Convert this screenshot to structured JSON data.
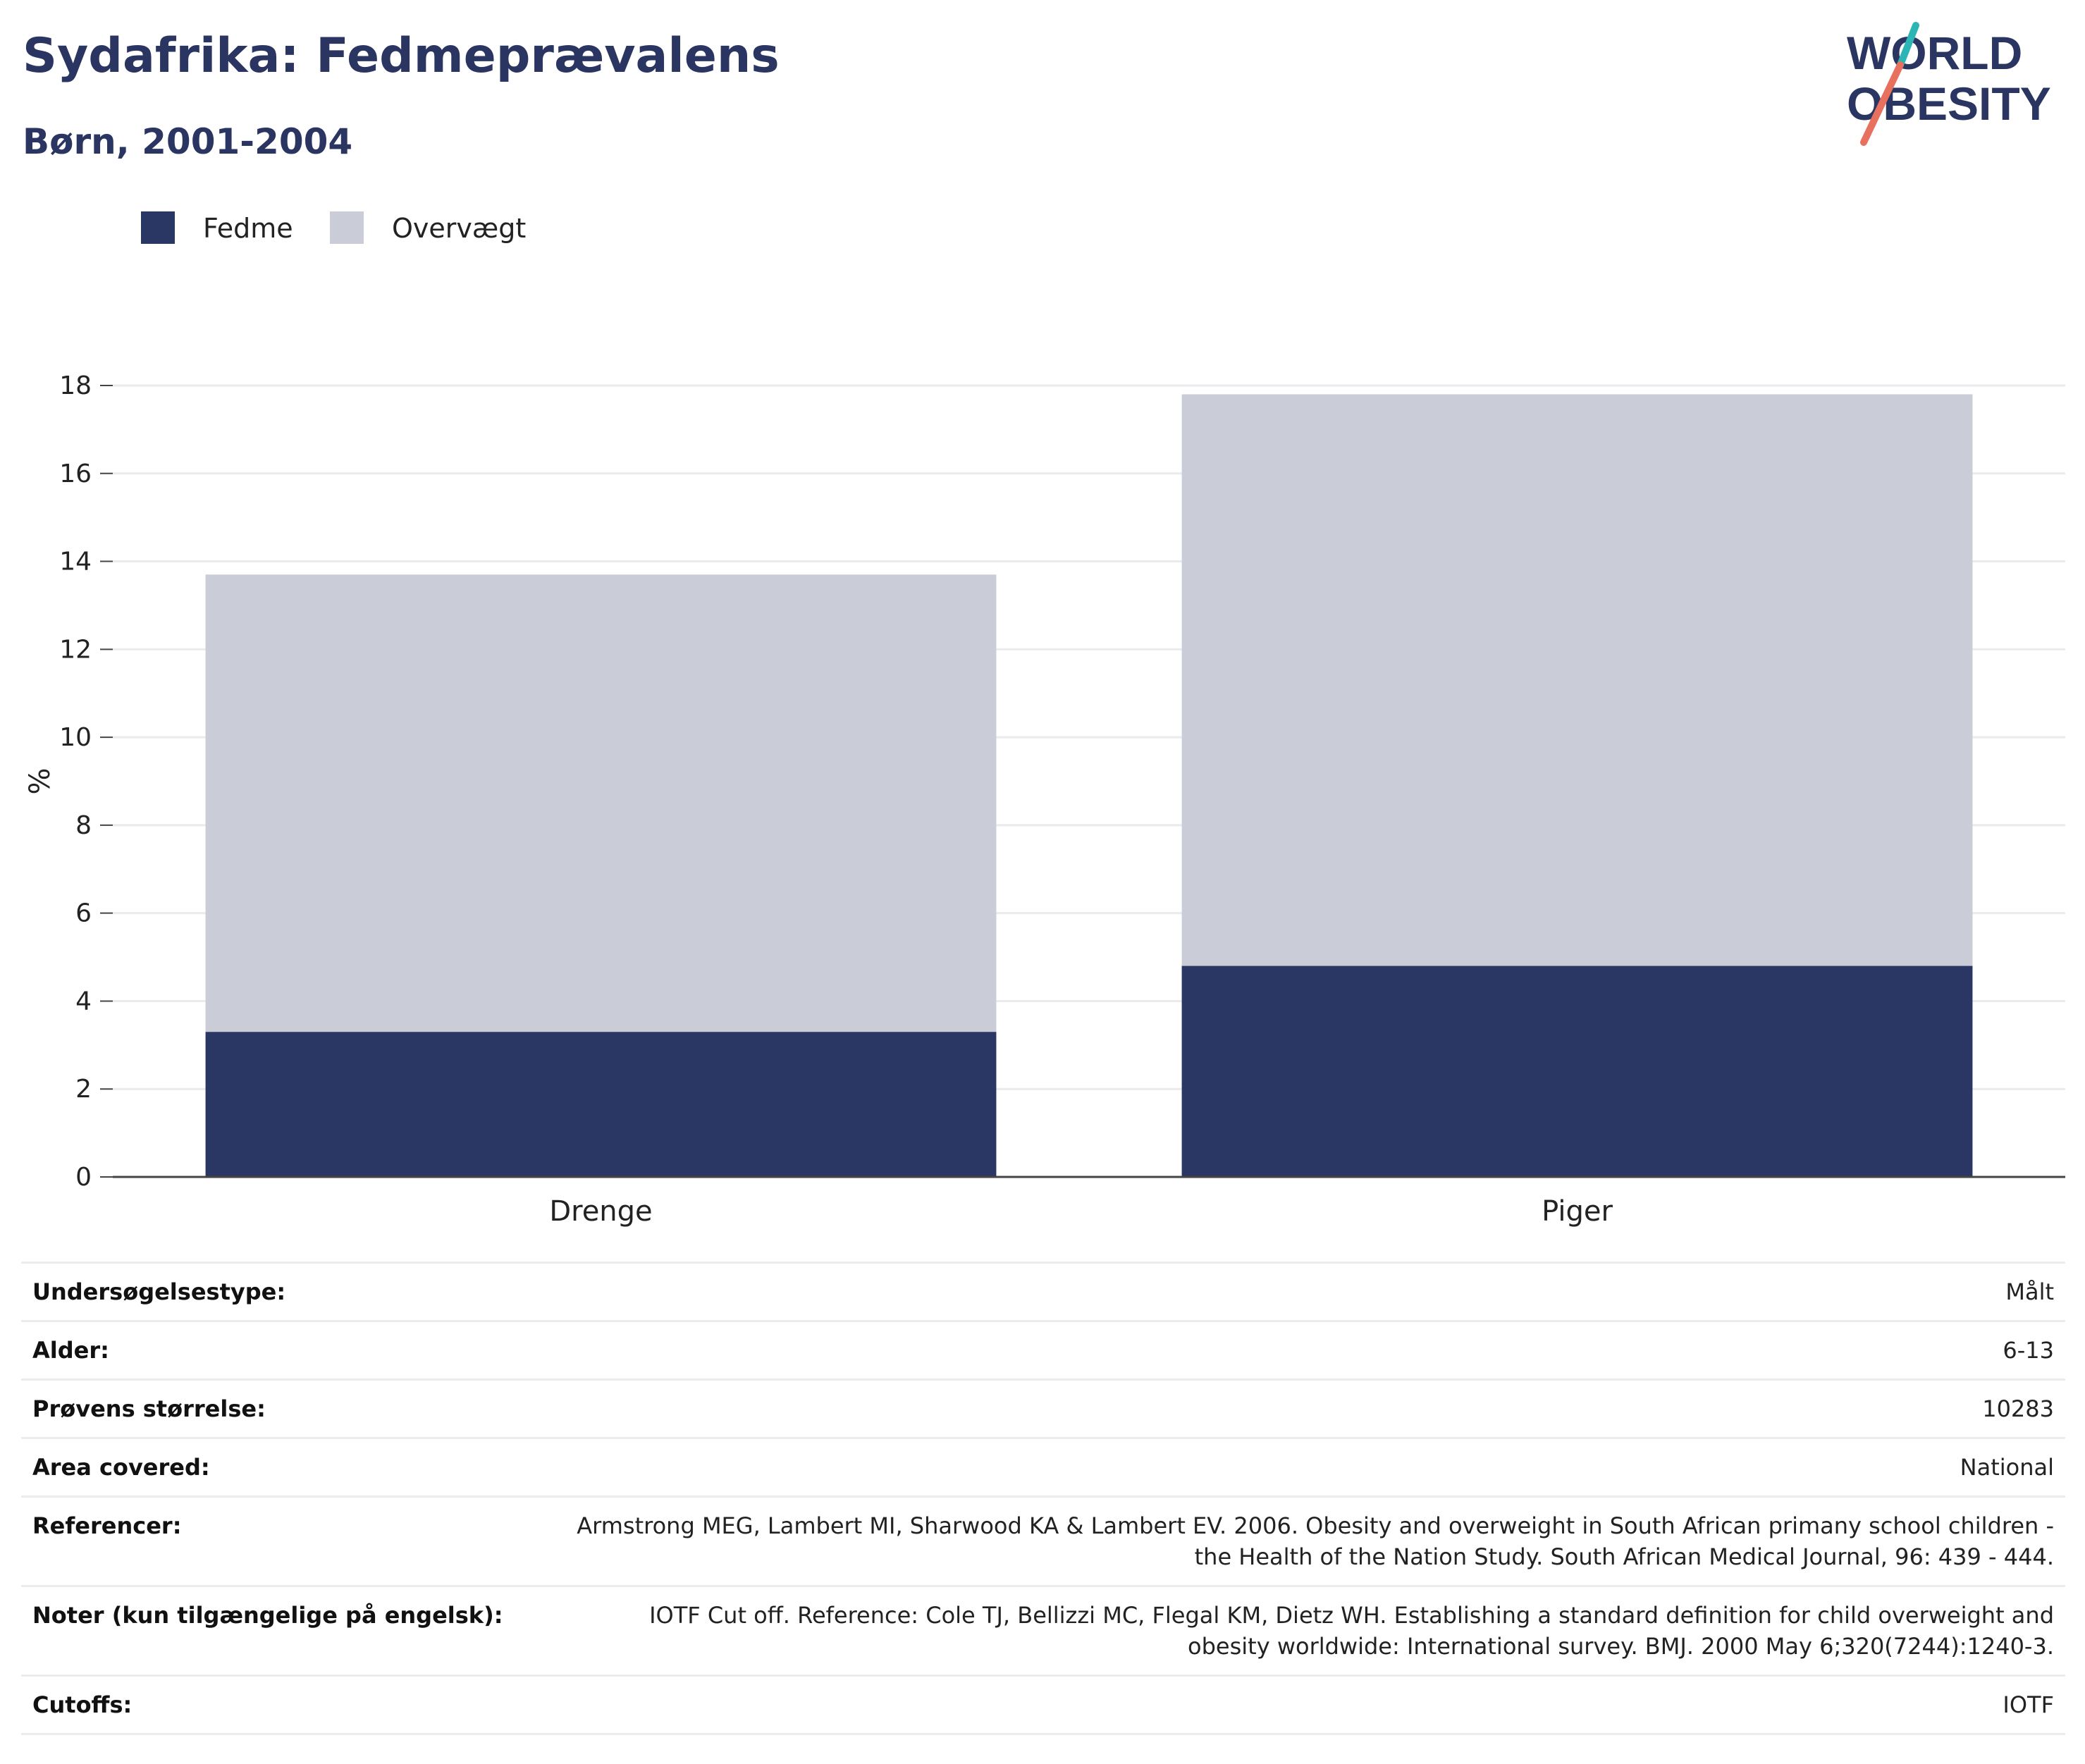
{
  "header": {
    "title": "Sydafrika: Fedmeprævalens",
    "subtitle": "Børn, 2001-2004",
    "logo_line1": "WORLD",
    "logo_line2": "OBESITY"
  },
  "colors": {
    "obesity": "#2a3663",
    "overweight": "#cacdd8",
    "title": "#2a3561",
    "logo_teal": "#2bb5b5",
    "logo_coral": "#e8705e",
    "grid": "#eaeaef",
    "axis": "#444444"
  },
  "legend": [
    {
      "label": "Fedme",
      "color": "#2a3663"
    },
    {
      "label": "Overvægt",
      "color": "#cacdd8"
    }
  ],
  "chart_data": {
    "type": "bar",
    "stacked": true,
    "categories": [
      "Drenge",
      "Piger"
    ],
    "series": [
      {
        "name": "Fedme",
        "values": [
          3.3,
          4.8
        ]
      },
      {
        "name": "Overvægt",
        "values": [
          10.4,
          13.0
        ]
      }
    ],
    "ylabel": "%",
    "xlabel": "",
    "ylim": [
      0,
      18
    ],
    "yticks": [
      0,
      2,
      4,
      6,
      8,
      10,
      12,
      14,
      16,
      18
    ],
    "grid": true,
    "legend_position": "top-left"
  },
  "meta": [
    {
      "label": "Undersøgelsestype:",
      "value": "Målt"
    },
    {
      "label": "Alder:",
      "value": "6-13"
    },
    {
      "label": "Prøvens størrelse:",
      "value": "10283"
    },
    {
      "label": "Area covered:",
      "value": "National"
    },
    {
      "label": "Referencer:",
      "value": "Armstrong MEG, Lambert MI, Sharwood KA & Lambert EV. 2006. Obesity and overweight in South African primany school children - the Health of the Nation Study. South African Medical Journal, 96: 439 - 444."
    },
    {
      "label": "Noter (kun tilgængelige på engelsk):",
      "value": "IOTF Cut off. Reference: Cole TJ, Bellizzi MC, Flegal KM, Dietz WH. Establishing a standard definition for child overweight and obesity worldwide: International survey. BMJ. 2000 May 6;320(7244):1240-3."
    },
    {
      "label": "Cutoffs:",
      "value": "IOTF"
    }
  ]
}
